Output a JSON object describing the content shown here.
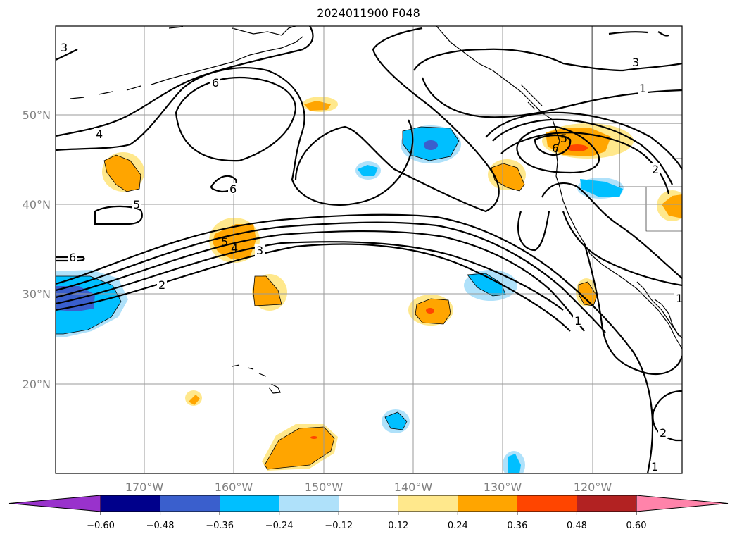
{
  "title": "2024011900 F048",
  "lat_labels": [
    "50°N",
    "40°N",
    "30°N",
    "20°N"
  ],
  "lon_labels": [
    "170°W",
    "160°W",
    "150°W",
    "140°W",
    "130°W",
    "120°W"
  ],
  "colorbar": {
    "ticks": [
      "−0.60",
      "−0.48",
      "−0.36",
      "−0.24",
      "−0.12",
      "0.12",
      "0.24",
      "0.36",
      "0.48",
      "0.60"
    ],
    "colors": [
      "#9932cc",
      "#00008b",
      "#3a5fcd",
      "#00bfff",
      "#afe1fa",
      "#ffffff",
      "#ffe88c",
      "#ffa500",
      "#ff4500",
      "#b22222",
      "#ff83aa"
    ]
  },
  "contour_labels": [
    "3",
    "6",
    "4",
    "6",
    "5",
    "6",
    "5",
    "4",
    "3",
    "2",
    "3",
    "1",
    "5",
    "6",
    "2",
    "1",
    "1",
    "2",
    "1"
  ]
}
